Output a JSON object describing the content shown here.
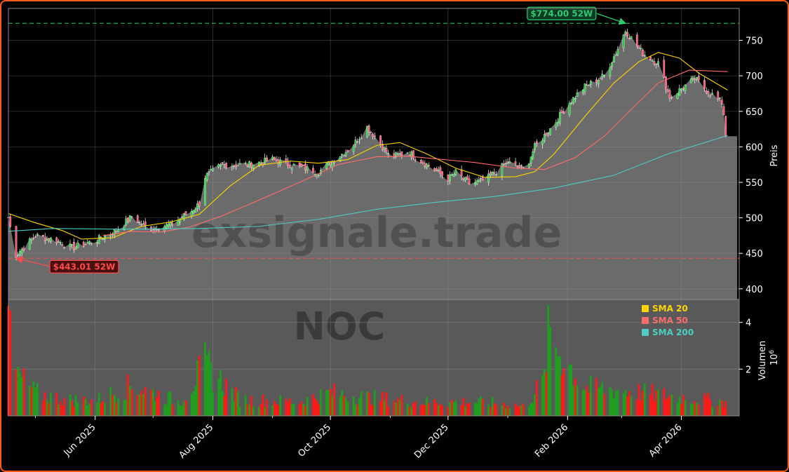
{
  "chart_data": {
    "type": "candlestick",
    "ticker_watermark": "NOC",
    "site_watermark": "exsignale.trade",
    "price_axis": {
      "label": "Preis",
      "ylim": [
        385,
        795
      ],
      "ticks": [
        400,
        450,
        500,
        550,
        600,
        650,
        700,
        750
      ]
    },
    "volume_axis": {
      "label": "Volumen",
      "exponent": "10",
      "exponent_power": "6",
      "ylim": [
        0,
        4.8
      ],
      "ticks": [
        2,
        4
      ]
    },
    "x_axis": {
      "range": [
        "2025-04-17",
        "2026-05-01"
      ],
      "ticks": [
        {
          "date": "2025-06-01",
          "label": "Jun 2025"
        },
        {
          "date": "2025-08-01",
          "label": "Aug 2025"
        },
        {
          "date": "2025-10-01",
          "label": "Oct 2025"
        },
        {
          "date": "2025-12-01",
          "label": "Dec 2025"
        },
        {
          "date": "2026-02-01",
          "label": "Feb 2026"
        },
        {
          "date": "2026-04-01",
          "label": "Apr 2026"
        }
      ]
    },
    "annotations": [
      {
        "name": "high-52w",
        "label": "$774.00 52W",
        "value": 774.0,
        "date": "2026-03-03",
        "color": "#2ecc71"
      },
      {
        "name": "low-52w",
        "label": "$443.01 52W",
        "value": 443.01,
        "date": "2025-04-21",
        "color": "#ff4d4d"
      }
    ],
    "last_price": 615,
    "legend": {
      "placement": "lower-right",
      "items": [
        {
          "name": "SMA 20",
          "color": "#ffd400"
        },
        {
          "name": "SMA 50",
          "color": "#ff6b6b"
        },
        {
          "name": "SMA 200",
          "color": "#4ecdc4"
        }
      ]
    },
    "price_keypoints": [
      [
        "2025-04-17",
        500
      ],
      [
        "2025-04-21",
        448
      ],
      [
        "2025-05-01",
        475
      ],
      [
        "2025-05-12",
        468
      ],
      [
        "2025-05-20",
        458
      ],
      [
        "2025-06-01",
        468
      ],
      [
        "2025-06-12",
        482
      ],
      [
        "2025-06-20",
        502
      ],
      [
        "2025-06-28",
        485
      ],
      [
        "2025-07-10",
        490
      ],
      [
        "2025-07-21",
        510
      ],
      [
        "2025-07-25",
        520
      ],
      [
        "2025-07-28",
        558
      ],
      [
        "2025-08-06",
        575
      ],
      [
        "2025-08-20",
        575
      ],
      [
        "2025-09-01",
        582
      ],
      [
        "2025-09-10",
        575
      ],
      [
        "2025-09-25",
        565
      ],
      [
        "2025-10-01",
        578
      ],
      [
        "2025-10-12",
        600
      ],
      [
        "2025-10-20",
        628
      ],
      [
        "2025-10-27",
        605
      ],
      [
        "2025-11-01",
        585
      ],
      [
        "2025-11-10",
        593
      ],
      [
        "2025-11-20",
        575
      ],
      [
        "2025-12-01",
        555
      ],
      [
        "2025-12-05",
        564
      ],
      [
        "2025-12-12",
        548
      ],
      [
        "2025-12-20",
        553
      ],
      [
        "2026-01-01",
        578
      ],
      [
        "2026-01-10",
        568
      ],
      [
        "2026-01-15",
        600
      ],
      [
        "2026-01-25",
        632
      ],
      [
        "2026-02-01",
        660
      ],
      [
        "2026-02-10",
        685
      ],
      [
        "2026-02-20",
        700
      ],
      [
        "2026-02-27",
        738
      ],
      [
        "2026-03-03",
        764
      ],
      [
        "2026-03-12",
        732
      ],
      [
        "2026-03-20",
        718
      ],
      [
        "2026-03-26",
        670
      ],
      [
        "2026-04-01",
        682
      ],
      [
        "2026-04-08",
        696
      ],
      [
        "2026-04-15",
        678
      ],
      [
        "2026-04-22",
        662
      ],
      [
        "2026-04-25",
        615
      ]
    ],
    "series": [
      {
        "name": "SMA 20",
        "color": "#ffd400",
        "points": [
          [
            "2025-04-17",
            506
          ],
          [
            "2025-05-01",
            493
          ],
          [
            "2025-05-15",
            482
          ],
          [
            "2025-05-25",
            470
          ],
          [
            "2025-06-10",
            472
          ],
          [
            "2025-06-25",
            488
          ],
          [
            "2025-07-10",
            494
          ],
          [
            "2025-07-25",
            505
          ],
          [
            "2025-08-10",
            545
          ],
          [
            "2025-08-25",
            574
          ],
          [
            "2025-09-10",
            580
          ],
          [
            "2025-09-25",
            577
          ],
          [
            "2025-10-10",
            582
          ],
          [
            "2025-10-25",
            602
          ],
          [
            "2025-11-06",
            606
          ],
          [
            "2025-11-20",
            590
          ],
          [
            "2025-12-05",
            570
          ],
          [
            "2025-12-20",
            557
          ],
          [
            "2026-01-05",
            558
          ],
          [
            "2026-01-15",
            565
          ],
          [
            "2026-01-25",
            590
          ],
          [
            "2026-02-10",
            643
          ],
          [
            "2026-02-25",
            690
          ],
          [
            "2026-03-10",
            720
          ],
          [
            "2026-03-20",
            733
          ],
          [
            "2026-03-31",
            725
          ],
          [
            "2026-04-10",
            704
          ],
          [
            "2026-04-25",
            680
          ]
        ]
      },
      {
        "name": "SMA 50",
        "color": "#ff6b6b",
        "points": [
          [
            "2025-06-05",
            475
          ],
          [
            "2025-06-20",
            481
          ],
          [
            "2025-07-05",
            480
          ],
          [
            "2025-07-20",
            487
          ],
          [
            "2025-08-05",
            502
          ],
          [
            "2025-08-25",
            525
          ],
          [
            "2025-09-15",
            550
          ],
          [
            "2025-10-05",
            575
          ],
          [
            "2025-10-25",
            586
          ],
          [
            "2025-11-10",
            587
          ],
          [
            "2025-11-25",
            583
          ],
          [
            "2025-12-15",
            578
          ],
          [
            "2026-01-05",
            570
          ],
          [
            "2026-01-20",
            568
          ],
          [
            "2026-02-05",
            585
          ],
          [
            "2026-02-20",
            615
          ],
          [
            "2026-03-05",
            650
          ],
          [
            "2026-03-20",
            690
          ],
          [
            "2026-04-05",
            708
          ],
          [
            "2026-04-25",
            706
          ]
        ]
      },
      {
        "name": "SMA 200",
        "color": "#4ecdc4",
        "points": [
          [
            "2025-04-17",
            481
          ],
          [
            "2025-05-10",
            485
          ],
          [
            "2025-06-15",
            484
          ],
          [
            "2025-07-25",
            485
          ],
          [
            "2025-08-25",
            488
          ],
          [
            "2025-09-25",
            498
          ],
          [
            "2025-10-25",
            512
          ],
          [
            "2025-11-25",
            522
          ],
          [
            "2025-12-25",
            530
          ],
          [
            "2026-01-25",
            542
          ],
          [
            "2026-02-25",
            560
          ],
          [
            "2026-03-25",
            590
          ],
          [
            "2026-04-25",
            616
          ]
        ]
      }
    ],
    "volume_keypoints": [
      [
        "2025-04-17",
        4.7
      ],
      [
        "2025-04-21",
        1.8
      ],
      [
        "2025-05-01",
        1.0
      ],
      [
        "2025-05-15",
        0.7
      ],
      [
        "2025-06-01",
        0.65
      ],
      [
        "2025-06-20",
        1.3
      ],
      [
        "2025-07-15",
        0.6
      ],
      [
        "2025-07-28",
        2.2
      ],
      [
        "2025-08-15",
        0.7
      ],
      [
        "2025-09-15",
        0.6
      ],
      [
        "2025-10-01",
        1.0
      ],
      [
        "2025-10-20",
        0.8
      ],
      [
        "2025-11-15",
        0.6
      ],
      [
        "2025-12-15",
        0.6
      ],
      [
        "2026-01-01",
        0.5
      ],
      [
        "2026-01-10",
        0.4
      ],
      [
        "2026-01-20",
        1.6
      ],
      [
        "2026-01-22",
        3.5
      ],
      [
        "2026-02-10",
        1.2
      ],
      [
        "2026-03-01",
        1.1
      ],
      [
        "2026-04-01",
        0.8
      ],
      [
        "2026-04-25",
        0.6
      ]
    ]
  }
}
